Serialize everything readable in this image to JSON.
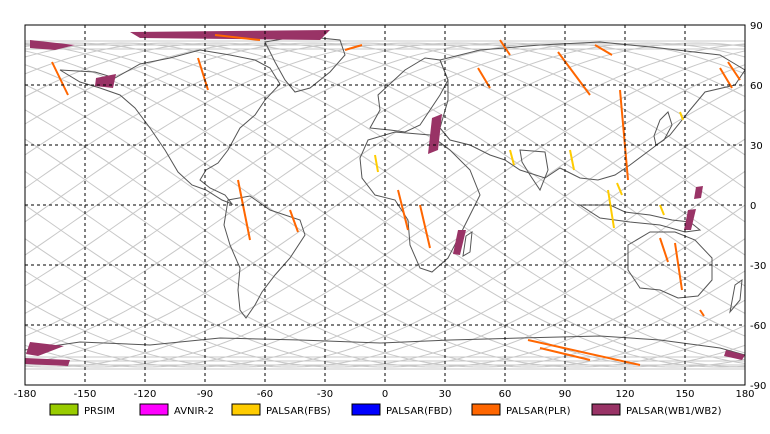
{
  "map": {
    "lon_range": [
      -180,
      180
    ],
    "lat_range": [
      -90,
      90
    ],
    "lon_ticks": [
      "-180",
      "-150",
      "-120",
      "-90",
      "-60",
      "-30",
      "0",
      "30",
      "60",
      "90",
      "120",
      "150",
      "180"
    ],
    "lat_ticks": [
      "90",
      "60",
      "30",
      "0",
      "-30",
      "-60",
      "-90"
    ],
    "grid": "dashed",
    "colors": {
      "frame": "#000000",
      "grid": "#000000",
      "coast": "#555555",
      "orbit": "#c8c8c8"
    }
  },
  "legend": [
    {
      "label": "PRSIM",
      "color": "#99cc00"
    },
    {
      "label": "AVNIR-2",
      "color": "#ff00ff"
    },
    {
      "label": "PALSAR(FBS)",
      "color": "#ffcc00"
    },
    {
      "label": "PALSAR(FBD)",
      "color": "#0000ff"
    },
    {
      "label": "PALSAR(PLR)",
      "color": "#ff6600"
    },
    {
      "label": "PALSAR(WB1/WB2)",
      "color": "#993366"
    }
  ]
}
